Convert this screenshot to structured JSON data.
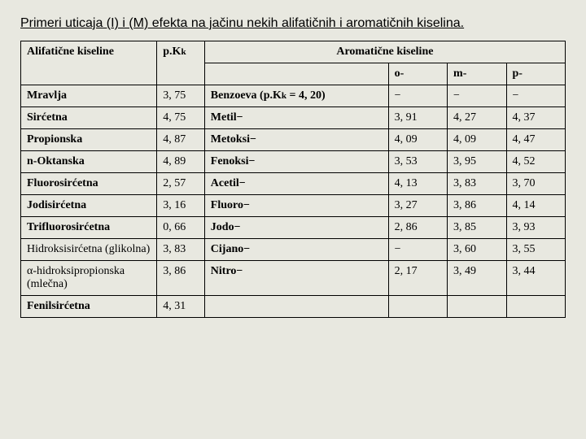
{
  "title": "Primeri uticaja (I) i (M) efekta na jačinu nekih alifatičnih i aromatičnih kiselina.",
  "headers": {
    "aliphatic": "Alifatične kiseline",
    "pk": "p.K",
    "pk_sub": "k",
    "aromatic": "Aromatične kiseline",
    "o": "o-",
    "m": "m-",
    "p": "p-"
  },
  "rows": [
    {
      "name": "Mravlja",
      "pk": "3, 75",
      "arom": "Benzoeva (p.Kₖ = 4, 20)",
      "o": "−",
      "m": "−",
      "p": "−"
    },
    {
      "name": "Sirćetna",
      "pk": "4, 75",
      "arom": "Metil−",
      "o": "3, 91",
      "m": "4, 27",
      "p": "4, 37"
    },
    {
      "name": "Propionska",
      "pk": "4, 87",
      "arom": "Metoksi−",
      "o": "4, 09",
      "m": "4, 09",
      "p": "4, 47"
    },
    {
      "name": "n-Oktanska",
      "pk": "4, 89",
      "arom": "Fenoksi−",
      "o": "3, 53",
      "m": "3, 95",
      "p": "4, 52"
    },
    {
      "name": "Fluorosirćetna",
      "pk": "2, 57",
      "arom": "Acetil−",
      "o": "4, 13",
      "m": "3, 83",
      "p": "3, 70"
    },
    {
      "name": "Jodisirćetna",
      "pk": "3, 16",
      "arom": "Fluoro−",
      "o": "3, 27",
      "m": "3, 86",
      "p": "4, 14"
    },
    {
      "name": "Trifluorosirćetna",
      "pk": "0, 66",
      "arom": "Jodo−",
      "o": "2, 86",
      "m": "3, 85",
      "p": "3, 93"
    },
    {
      "name": "Hidroksisirćetna (glikolna)",
      "pk": "3, 83",
      "arom": "Cijano−",
      "o": "−",
      "m": "3, 60",
      "p": "3, 55"
    },
    {
      "name": "α-hidroksipropionska (mlečna)",
      "pk": "3, 86",
      "arom": "Nitro−",
      "o": "2, 17",
      "m": "3, 49",
      "p": "3, 44"
    },
    {
      "name": "Fenilsirćetna",
      "pk": "4, 31",
      "arom": "",
      "o": "",
      "m": "",
      "p": ""
    }
  ]
}
